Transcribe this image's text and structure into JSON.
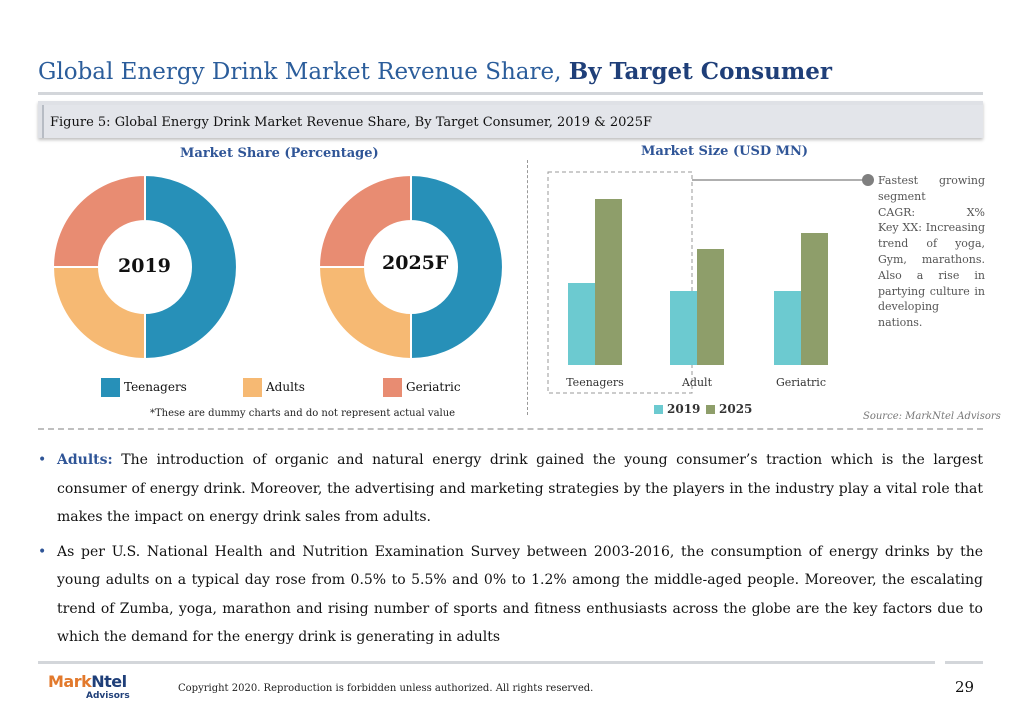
{
  "title": {
    "regular": "Global Energy Drink Market Revenue Share, ",
    "bold": "By Target Consumer"
  },
  "figure_caption": "Figure 5: Global Energy Drink Market Revenue Share, By Target Consumer, 2019 & 2025F",
  "market_share_heading": "Market Share (Percentage)",
  "market_size_heading": "Market Size (USD MN)",
  "colors": {
    "title": "#2b5d9b",
    "teenagers": "#2790b8",
    "adults": "#f6b973",
    "geriatric": "#e88c72",
    "bar_2019": "#6ccad0",
    "bar_2025": "#8e9e6a"
  },
  "chart_data": [
    {
      "type": "pie",
      "title": "2019",
      "categories": [
        "Teenagers",
        "Adults",
        "Geriatric"
      ],
      "values": [
        50,
        25,
        25
      ]
    },
    {
      "type": "pie",
      "title": "2025F",
      "categories": [
        "Teenagers",
        "Adults",
        "Geriatric"
      ],
      "values": [
        50,
        25,
        25
      ]
    },
    {
      "type": "bar",
      "categories": [
        "Teenagers",
        "Adult",
        "Geriatric"
      ],
      "series": [
        {
          "name": "2019",
          "values": [
            41,
            37,
            37
          ]
        },
        {
          "name": "2025",
          "values": [
            83,
            58,
            66
          ]
        }
      ],
      "ylim": [
        0,
        100
      ],
      "grid": false,
      "legend": "bottom"
    }
  ],
  "donut_legend": [
    "Teenagers",
    "Adults",
    "Geriatric"
  ],
  "bar_legend": [
    "2019",
    "2025"
  ],
  "dummy_note": "*These are dummy charts and do not represent actual value",
  "callout_lines": [
    "Fastest growing",
    "segment",
    "CAGR: X%",
    "Key XX: Increasing",
    "trend of yoga,",
    "Gym, marathons.",
    "Also a rise in",
    "partying culture in",
    "developing",
    "nations."
  ],
  "source": "Source: MarkNtel Advisors",
  "bullets": [
    {
      "lead": "Adults:",
      "text": " The introduction of organic and natural energy drink gained the young consumer’s traction which is the largest consumer of energy drink. Moreover, the advertising and marketing strategies by the players in the industry play a vital role that makes the impact on energy drink sales from adults."
    },
    {
      "lead": "",
      "text": "As per U.S. National Health and Nutrition Examination Survey between 2003-2016, the consumption of energy drinks by the young adults on a typical day rose from 0.5% to 5.5% and 0% to 1.2% among the middle-aged people. Moreover, the escalating trend of Zumba, yoga, marathon and rising number of sports and fitness enthusiasts across the globe are the key factors due to which the demand for the energy drink is generating in adults"
    }
  ],
  "bullet_glyph": "•",
  "footer": {
    "logo_part1": "Mark",
    "logo_part2": "Ntel",
    "logo_sub": "Advisors",
    "copyright": "Copyright 2020. Reproduction is forbidden unless authorized. All rights reserved.",
    "page_number": "29"
  }
}
